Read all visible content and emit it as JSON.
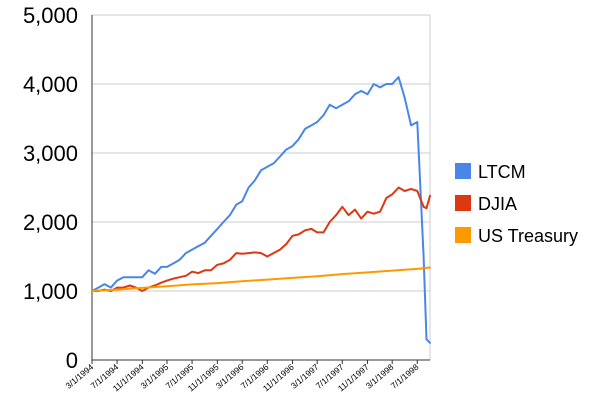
{
  "chart_data": {
    "type": "line",
    "title": "",
    "xlabel": "",
    "ylabel": "",
    "ylim": [
      0,
      5000
    ],
    "y_ticks": [
      0,
      1000,
      2000,
      3000,
      4000,
      5000
    ],
    "y_tick_labels": [
      "0",
      "1,000",
      "2,000",
      "3,000",
      "4,000",
      "5,000"
    ],
    "x_range": [
      "1994-03-01",
      "1998-09-01"
    ],
    "x_ticks": [
      {
        "date": "1994-03-01",
        "label": "3/1/1994"
      },
      {
        "date": "1994-07-01",
        "label": "7/1/1994"
      },
      {
        "date": "1994-11-01",
        "label": "11/1/1994"
      },
      {
        "date": "1995-03-01",
        "label": "3/1/1995"
      },
      {
        "date": "1995-07-01",
        "label": "7/1/1995"
      },
      {
        "date": "1995-11-01",
        "label": "11/1/1995"
      },
      {
        "date": "1996-03-01",
        "label": "3/1/1996"
      },
      {
        "date": "1996-07-01",
        "label": "7/1/1996"
      },
      {
        "date": "1996-11-01",
        "label": "11/1/1996"
      },
      {
        "date": "1997-03-01",
        "label": "3/1/1997"
      },
      {
        "date": "1997-07-01",
        "label": "7/1/1997"
      },
      {
        "date": "1997-11-01",
        "label": "11/1/1997"
      },
      {
        "date": "1998-03-01",
        "label": "3/1/1998"
      },
      {
        "date": "1998-07-01",
        "label": "7/1/1998"
      }
    ],
    "grid": true,
    "legend_position": "right",
    "series": [
      {
        "name": "LTCM",
        "color": "#4a86e8",
        "points": [
          [
            "1994-03-01",
            1000
          ],
          [
            "1994-04-01",
            1050
          ],
          [
            "1994-05-01",
            1100
          ],
          [
            "1994-06-01",
            1050
          ],
          [
            "1994-07-01",
            1150
          ],
          [
            "1994-08-01",
            1200
          ],
          [
            "1994-09-01",
            1200
          ],
          [
            "1994-10-01",
            1200
          ],
          [
            "1994-11-01",
            1200
          ],
          [
            "1994-12-01",
            1300
          ],
          [
            "1995-01-01",
            1250
          ],
          [
            "1995-02-01",
            1350
          ],
          [
            "1995-03-01",
            1350
          ],
          [
            "1995-04-01",
            1400
          ],
          [
            "1995-05-01",
            1450
          ],
          [
            "1995-06-01",
            1550
          ],
          [
            "1995-07-01",
            1600
          ],
          [
            "1995-08-01",
            1650
          ],
          [
            "1995-09-01",
            1700
          ],
          [
            "1995-10-01",
            1800
          ],
          [
            "1995-11-01",
            1900
          ],
          [
            "1995-12-01",
            2000
          ],
          [
            "1996-01-01",
            2100
          ],
          [
            "1996-02-01",
            2250
          ],
          [
            "1996-03-01",
            2300
          ],
          [
            "1996-04-01",
            2500
          ],
          [
            "1996-05-01",
            2600
          ],
          [
            "1996-06-01",
            2750
          ],
          [
            "1996-07-01",
            2800
          ],
          [
            "1996-08-01",
            2850
          ],
          [
            "1996-09-01",
            2950
          ],
          [
            "1996-10-01",
            3050
          ],
          [
            "1996-11-01",
            3100
          ],
          [
            "1996-12-01",
            3200
          ],
          [
            "1997-01-01",
            3350
          ],
          [
            "1997-02-01",
            3400
          ],
          [
            "1997-03-01",
            3450
          ],
          [
            "1997-04-01",
            3550
          ],
          [
            "1997-05-01",
            3700
          ],
          [
            "1997-06-01",
            3650
          ],
          [
            "1997-07-01",
            3700
          ],
          [
            "1997-08-01",
            3750
          ],
          [
            "1997-09-01",
            3850
          ],
          [
            "1997-10-01",
            3900
          ],
          [
            "1997-11-01",
            3850
          ],
          [
            "1997-12-01",
            4000
          ],
          [
            "1998-01-01",
            3950
          ],
          [
            "1998-02-01",
            4000
          ],
          [
            "1998-03-01",
            4000
          ],
          [
            "1998-04-01",
            4100
          ],
          [
            "1998-05-01",
            3800
          ],
          [
            "1998-06-01",
            3400
          ],
          [
            "1998-07-01",
            3450
          ],
          [
            "1998-08-01",
            1500
          ],
          [
            "1998-08-15",
            300
          ],
          [
            "1998-09-01",
            250
          ]
        ]
      },
      {
        "name": "DJIA",
        "color": "#dc3912",
        "points": [
          [
            "1994-03-01",
            1000
          ],
          [
            "1994-04-01",
            1000
          ],
          [
            "1994-05-01",
            1020
          ],
          [
            "1994-06-01",
            1000
          ],
          [
            "1994-07-01",
            1050
          ],
          [
            "1994-08-01",
            1050
          ],
          [
            "1994-09-01",
            1080
          ],
          [
            "1994-10-01",
            1050
          ],
          [
            "1994-11-01",
            1000
          ],
          [
            "1994-12-01",
            1050
          ],
          [
            "1995-01-01",
            1080
          ],
          [
            "1995-02-01",
            1120
          ],
          [
            "1995-03-01",
            1150
          ],
          [
            "1995-04-01",
            1180
          ],
          [
            "1995-05-01",
            1200
          ],
          [
            "1995-06-01",
            1220
          ],
          [
            "1995-07-01",
            1280
          ],
          [
            "1995-08-01",
            1260
          ],
          [
            "1995-09-01",
            1300
          ],
          [
            "1995-10-01",
            1300
          ],
          [
            "1995-11-01",
            1380
          ],
          [
            "1995-12-01",
            1400
          ],
          [
            "1996-01-01",
            1450
          ],
          [
            "1996-02-01",
            1550
          ],
          [
            "1996-03-01",
            1540
          ],
          [
            "1996-04-01",
            1550
          ],
          [
            "1996-05-01",
            1560
          ],
          [
            "1996-06-01",
            1550
          ],
          [
            "1996-07-01",
            1500
          ],
          [
            "1996-08-01",
            1550
          ],
          [
            "1996-09-01",
            1600
          ],
          [
            "1996-10-01",
            1680
          ],
          [
            "1996-11-01",
            1800
          ],
          [
            "1996-12-01",
            1820
          ],
          [
            "1997-01-01",
            1880
          ],
          [
            "1997-02-01",
            1900
          ],
          [
            "1997-03-01",
            1850
          ],
          [
            "1997-04-01",
            1850
          ],
          [
            "1997-05-01",
            2000
          ],
          [
            "1997-06-01",
            2100
          ],
          [
            "1997-07-01",
            2220
          ],
          [
            "1997-08-01",
            2100
          ],
          [
            "1997-09-01",
            2180
          ],
          [
            "1997-10-01",
            2050
          ],
          [
            "1997-11-01",
            2150
          ],
          [
            "1997-12-01",
            2120
          ],
          [
            "1998-01-01",
            2150
          ],
          [
            "1998-02-01",
            2350
          ],
          [
            "1998-03-01",
            2400
          ],
          [
            "1998-04-01",
            2500
          ],
          [
            "1998-05-01",
            2450
          ],
          [
            "1998-06-01",
            2480
          ],
          [
            "1998-07-01",
            2450
          ],
          [
            "1998-08-01",
            2220
          ],
          [
            "1998-08-15",
            2200
          ],
          [
            "1998-09-01",
            2380
          ]
        ]
      },
      {
        "name": "US Treasury",
        "color": "#ff9900",
        "points": [
          [
            "1994-03-01",
            1000
          ],
          [
            "1994-07-01",
            1020
          ],
          [
            "1994-11-01",
            1045
          ],
          [
            "1995-03-01",
            1070
          ],
          [
            "1995-07-01",
            1095
          ],
          [
            "1995-11-01",
            1115
          ],
          [
            "1996-03-01",
            1140
          ],
          [
            "1996-07-01",
            1165
          ],
          [
            "1996-11-01",
            1190
          ],
          [
            "1997-03-01",
            1215
          ],
          [
            "1997-07-01",
            1245
          ],
          [
            "1997-11-01",
            1270
          ],
          [
            "1998-03-01",
            1295
          ],
          [
            "1998-07-01",
            1320
          ],
          [
            "1998-09-01",
            1340
          ]
        ]
      }
    ]
  }
}
